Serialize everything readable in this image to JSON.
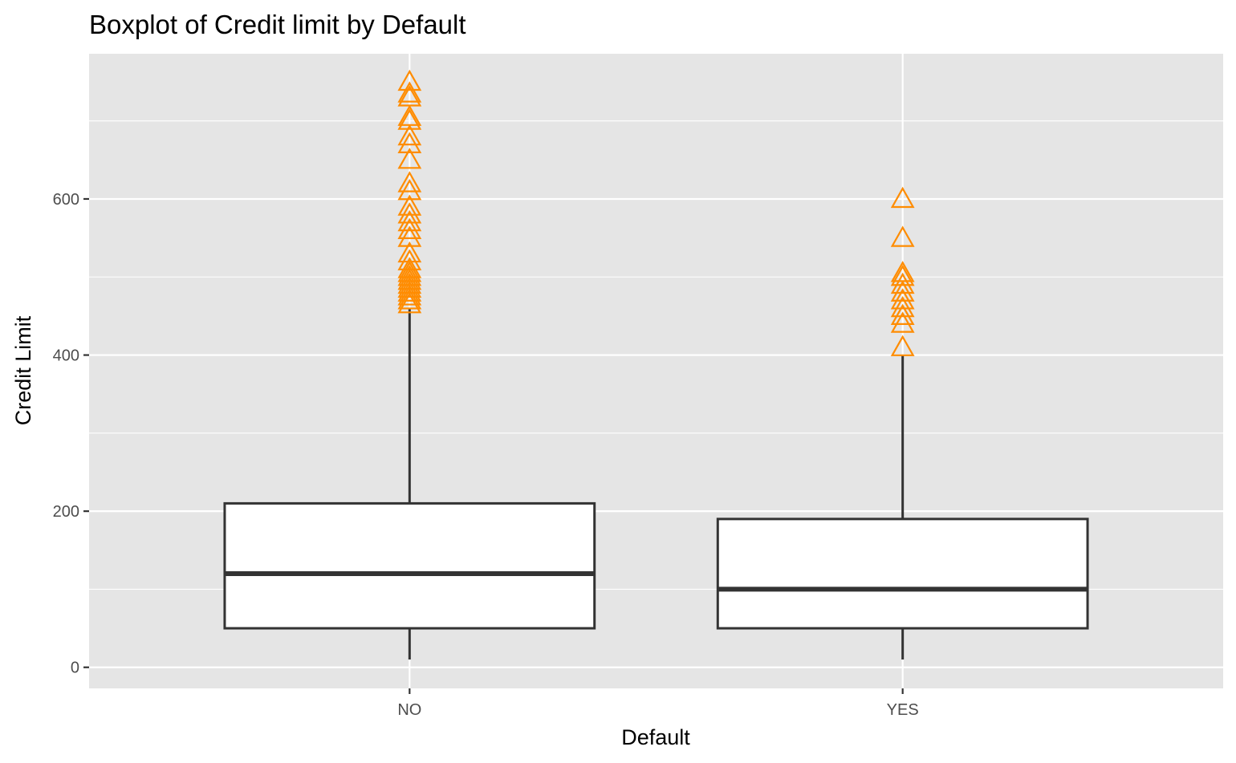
{
  "chart_data": {
    "type": "boxplot",
    "title": "Boxplot of Credit limit by Default",
    "xlabel": "Default",
    "ylabel": "Credit Limit",
    "categories": [
      "NO",
      "YES"
    ],
    "ylim": [
      -27,
      786
    ],
    "yticks": [
      0,
      200,
      400,
      600
    ],
    "ytick_labels": [
      "0",
      "200",
      "400",
      "600"
    ],
    "grid": true,
    "legend": "none",
    "colors": {
      "outlier": "#ff8c00",
      "box_fill": "#ffffff",
      "box_line": "#333333",
      "panel": "#e5e5e5"
    },
    "series": [
      {
        "category": "NO",
        "whisker_low": 10,
        "q1": 50,
        "median": 120,
        "q3": 210,
        "whisker_high": 460,
        "outliers": [
          465,
          470,
          475,
          480,
          485,
          490,
          495,
          500,
          505,
          510,
          520,
          530,
          550,
          560,
          570,
          580,
          590,
          610,
          620,
          650,
          670,
          680,
          700,
          705,
          730,
          735,
          750
        ]
      },
      {
        "category": "YES",
        "whisker_low": 10,
        "q1": 50,
        "median": 100,
        "q3": 190,
        "whisker_high": 400,
        "outliers": [
          410,
          440,
          450,
          460,
          470,
          480,
          490,
          500,
          505,
          550,
          600
        ]
      }
    ]
  }
}
